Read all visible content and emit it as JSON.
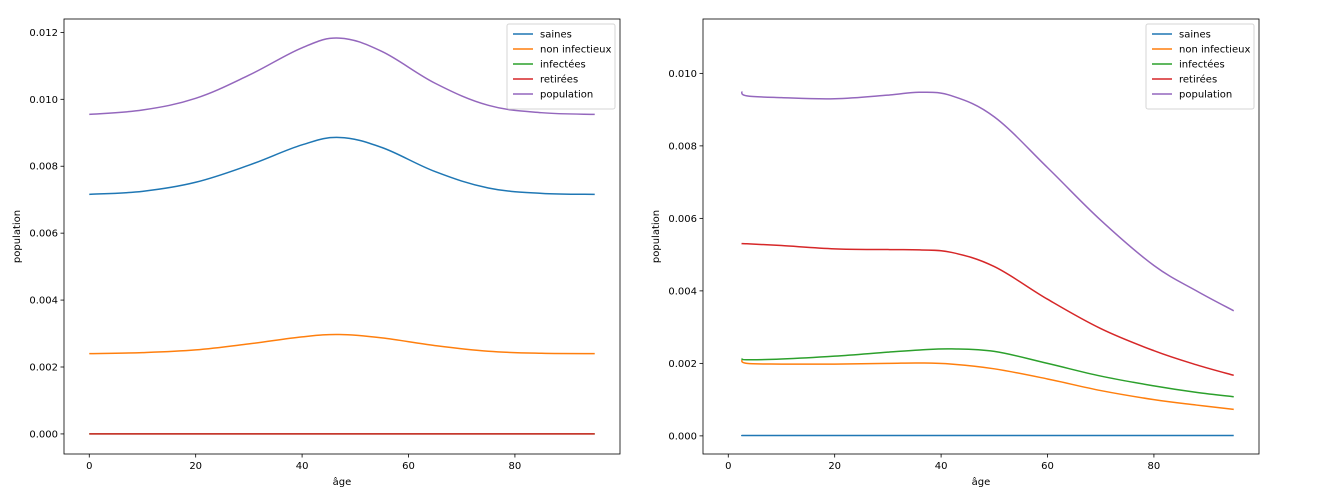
{
  "chart_data": [
    {
      "type": "line",
      "xlabel": "âge",
      "ylabel": "population",
      "xlim": [
        -4.75,
        99.75
      ],
      "ylim": [
        -0.0006,
        0.0124
      ],
      "xticks": [
        0,
        20,
        40,
        60,
        80
      ],
      "xtick_labels": [
        "0",
        "20",
        "40",
        "60",
        "80"
      ],
      "yticks": [
        0.0,
        0.002,
        0.004,
        0.006,
        0.008,
        0.01,
        0.012
      ],
      "ytick_labels": [
        "0.000",
        "0.002",
        "0.004",
        "0.006",
        "0.008",
        "0.010",
        "0.012"
      ],
      "grid": false,
      "legend_position": "upper right",
      "x": [
        0,
        10,
        20,
        30,
        40,
        47,
        55,
        65,
        75,
        85,
        95
      ],
      "series": [
        {
          "name": "saines",
          "color": "#1f77b4",
          "values": [
            0.00716,
            0.00725,
            0.00752,
            0.00803,
            0.00864,
            0.00886,
            0.00856,
            0.00784,
            0.00735,
            0.00719,
            0.00716
          ]
        },
        {
          "name": "non infectieux",
          "color": "#ff7f0e",
          "values": [
            0.0024,
            0.00243,
            0.00251,
            0.00269,
            0.0029,
            0.00297,
            0.00287,
            0.00264,
            0.00247,
            0.00241,
            0.0024
          ]
        },
        {
          "name": "infectées",
          "color": "#2ca02c",
          "values": [
            0,
            0,
            0,
            0,
            0,
            0,
            0,
            0,
            0,
            0,
            0
          ]
        },
        {
          "name": "retirées",
          "color": "#d62728",
          "values": [
            0,
            0,
            0,
            0,
            0,
            0,
            0,
            0,
            0,
            0,
            0
          ]
        },
        {
          "name": "population",
          "color": "#9467bd",
          "values": [
            0.00955,
            0.00968,
            0.01003,
            0.01072,
            0.01154,
            0.01183,
            0.01143,
            0.01048,
            0.00982,
            0.0096,
            0.00955
          ]
        }
      ]
    },
    {
      "type": "line",
      "xlabel": "âge",
      "ylabel": "population",
      "xlim": [
        -4.75,
        99.75
      ],
      "ylim": [
        -0.0005,
        0.0115
      ],
      "xticks": [
        0,
        20,
        40,
        60,
        80
      ],
      "xtick_labels": [
        "0",
        "20",
        "40",
        "60",
        "80"
      ],
      "yticks": [
        0.0,
        0.002,
        0.004,
        0.006,
        0.008,
        0.01
      ],
      "ytick_labels": [
        "0.000",
        "0.002",
        "0.004",
        "0.006",
        "0.008",
        "0.010"
      ],
      "grid": false,
      "legend_position": "upper right",
      "x": [
        2.5,
        3.5,
        10,
        20,
        30,
        36,
        42,
        50,
        60,
        70,
        80,
        88,
        95
      ],
      "series": [
        {
          "name": "saines",
          "color": "#1f77b4",
          "values": [
            1e-05,
            1e-05,
            1e-05,
            1e-05,
            1e-05,
            1e-05,
            1e-05,
            1e-05,
            1e-05,
            1e-05,
            1e-05,
            1e-05,
            1e-05
          ]
        },
        {
          "name": "non infectieux",
          "color": "#ff7f0e",
          "values": [
            0.0021,
            0.002,
            0.00198,
            0.00198,
            0.002,
            0.00201,
            0.00198,
            0.00185,
            0.00157,
            0.00125,
            0.001,
            0.00085,
            0.00073
          ]
        },
        {
          "name": "infectées",
          "color": "#2ca02c",
          "values": [
            0.00213,
            0.0021,
            0.00212,
            0.0022,
            0.00231,
            0.00237,
            0.0024,
            0.00233,
            0.002,
            0.00165,
            0.00138,
            0.0012,
            0.00108
          ]
        },
        {
          "name": "retirées",
          "color": "#d62728",
          "values": [
            0.0053,
            0.0053,
            0.00525,
            0.00516,
            0.00514,
            0.00513,
            0.00506,
            0.00467,
            0.00377,
            0.00296,
            0.00235,
            0.00196,
            0.00167
          ]
        },
        {
          "name": "population",
          "color": "#9467bd",
          "values": [
            0.0095,
            0.00938,
            0.00933,
            0.0093,
            0.0094,
            0.00948,
            0.00938,
            0.0088,
            0.0074,
            0.00595,
            0.0047,
            0.004,
            0.00345
          ]
        }
      ]
    }
  ]
}
